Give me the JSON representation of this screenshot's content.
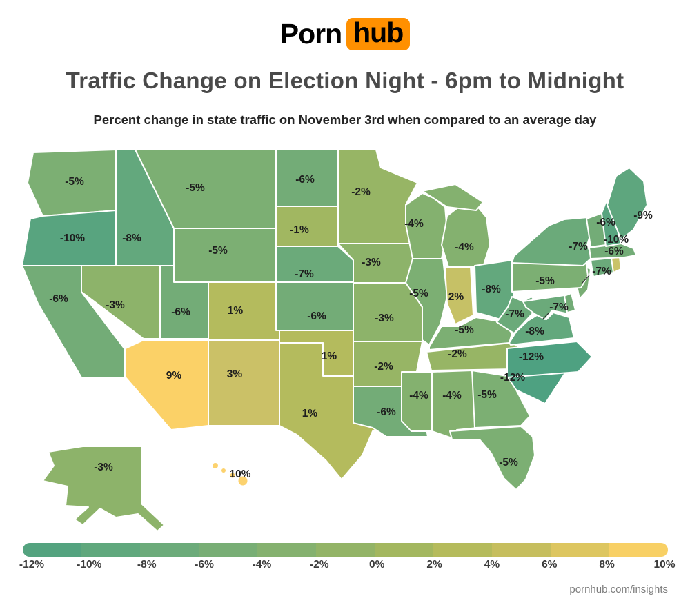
{
  "header": {
    "logo": {
      "left": "Porn",
      "right": "hub",
      "accent_color": "#ff9000"
    },
    "title": "Traffic Change on Election Night - 6pm to Midnight",
    "subtitle": "Percent change in state traffic on November 3rd when compared to an average day"
  },
  "legend": {
    "ticks": [
      "-12%",
      "-10%",
      "-8%",
      "-6%",
      "-4%",
      "-2%",
      "0%",
      "2%",
      "4%",
      "6%",
      "8%",
      "10%"
    ],
    "segment_colors": [
      "#54a37f",
      "#60a87d",
      "#6cab7a",
      "#78ae75",
      "#85b16f",
      "#93b467",
      "#a3b75f",
      "#b5bb5c",
      "#c6be5e",
      "#ddc660",
      "#f8d065"
    ]
  },
  "footer": {
    "credit": "pornhub.com/insights"
  },
  "chart_data": {
    "type": "heatmap",
    "subtype": "us-state-choropleth",
    "title": "Traffic Change on Election Night - 6pm to Midnight",
    "subtitle": "Percent change in state traffic on November 3rd when compared to an average day",
    "unit": "percent change vs average day",
    "legend_range": [
      -12,
      10
    ],
    "legend_step": 2,
    "legend_position": "bottom",
    "states": [
      {
        "abbr": "WA",
        "name": "Washington",
        "value": -5,
        "label": "-5%",
        "fill": "#7caf73"
      },
      {
        "abbr": "OR",
        "name": "Oregon",
        "value": -10,
        "label": "-10%",
        "fill": "#58a47f"
      },
      {
        "abbr": "CA",
        "name": "California",
        "value": -6,
        "label": "-6%",
        "fill": "#73ac77"
      },
      {
        "abbr": "NV",
        "name": "Nevada",
        "value": -3,
        "label": "-3%",
        "fill": "#8db36a"
      },
      {
        "abbr": "ID",
        "name": "Idaho",
        "value": -8,
        "label": "-8%",
        "fill": "#63a87d"
      },
      {
        "abbr": "UT",
        "name": "Utah",
        "value": -6,
        "label": "-6%",
        "fill": "#73ac77"
      },
      {
        "abbr": "AZ",
        "name": "Arizona",
        "value": 9,
        "label": "9%",
        "fill": "#fbd167"
      },
      {
        "abbr": "MT",
        "name": "Montana",
        "value": -5,
        "label": "-5%",
        "fill": "#7caf73"
      },
      {
        "abbr": "WY",
        "name": "Wyoming",
        "value": -5,
        "label": "-5%",
        "fill": "#7caf73"
      },
      {
        "abbr": "CO",
        "name": "Colorado",
        "value": 1,
        "label": "1%",
        "fill": "#b4bb5d"
      },
      {
        "abbr": "NM",
        "name": "New Mexico",
        "value": 3,
        "label": "3%",
        "fill": "#cbc167"
      },
      {
        "abbr": "ND",
        "name": "North Dakota",
        "value": -6,
        "label": "-6%",
        "fill": "#73ac77"
      },
      {
        "abbr": "SD",
        "name": "South Dakota",
        "value": -1,
        "label": "-1%",
        "fill": "#a1b761"
      },
      {
        "abbr": "NE",
        "name": "Nebraska",
        "value": -7,
        "label": "-7%",
        "fill": "#6baa7a"
      },
      {
        "abbr": "KS",
        "name": "Kansas",
        "value": -6,
        "label": "-6%",
        "fill": "#73ac77"
      },
      {
        "abbr": "OK",
        "name": "Oklahoma",
        "value": 1,
        "label": "1%",
        "fill": "#b4bb5d"
      },
      {
        "abbr": "TX",
        "name": "Texas",
        "value": 1,
        "label": "1%",
        "fill": "#b4bb5d"
      },
      {
        "abbr": "MN",
        "name": "Minnesota",
        "value": -2,
        "label": "-2%",
        "fill": "#97b565"
      },
      {
        "abbr": "IA",
        "name": "Iowa",
        "value": -3,
        "label": "-3%",
        "fill": "#8db36a"
      },
      {
        "abbr": "MO",
        "name": "Missouri",
        "value": -3,
        "label": "-3%",
        "fill": "#8db36a"
      },
      {
        "abbr": "AR",
        "name": "Arkansas",
        "value": -2,
        "label": "-2%",
        "fill": "#97b565"
      },
      {
        "abbr": "LA",
        "name": "Louisiana",
        "value": -6,
        "label": "-6%",
        "fill": "#73ac77"
      },
      {
        "abbr": "WI",
        "name": "Wisconsin",
        "value": -4,
        "label": "-4%",
        "fill": "#84b16f"
      },
      {
        "abbr": "IL",
        "name": "Illinois",
        "value": -5,
        "label": "-5%",
        "fill": "#7caf73"
      },
      {
        "abbr": "MI",
        "name": "Michigan",
        "value": -4,
        "label": "-4%",
        "fill": "#84b16f"
      },
      {
        "abbr": "IN",
        "name": "Indiana",
        "value": 2,
        "label": "2%",
        "fill": "#c6c166"
      },
      {
        "abbr": "OH",
        "name": "Ohio",
        "value": -8,
        "label": "-8%",
        "fill": "#63a87d"
      },
      {
        "abbr": "KY",
        "name": "Kentucky",
        "value": -5,
        "label": "-5%",
        "fill": "#7caf73"
      },
      {
        "abbr": "TN",
        "name": "Tennessee",
        "value": -2,
        "label": "-2%",
        "fill": "#97b565"
      },
      {
        "abbr": "MS",
        "name": "Mississippi",
        "value": -4,
        "label": "-4%",
        "fill": "#84b16f"
      },
      {
        "abbr": "AL",
        "name": "Alabama",
        "value": -4,
        "label": "-4%",
        "fill": "#84b16f"
      },
      {
        "abbr": "GA",
        "name": "Georgia",
        "value": -5,
        "label": "-5%",
        "fill": "#7caf73"
      },
      {
        "abbr": "FL",
        "name": "Florida",
        "value": -5,
        "label": "-5%",
        "fill": "#7caf73"
      },
      {
        "abbr": "SC",
        "name": "South Carolina",
        "value": -12,
        "label": "-12%",
        "fill": "#4ea181"
      },
      {
        "abbr": "NC",
        "name": "North Carolina",
        "value": -12,
        "label": "-12%",
        "fill": "#4ea181"
      },
      {
        "abbr": "VA",
        "name": "Virginia",
        "value": -8,
        "label": "-8%",
        "fill": "#63a87d"
      },
      {
        "abbr": "WV",
        "name": "West Virginia",
        "value": -7,
        "label": "-7%",
        "fill": "#6baa7a"
      },
      {
        "abbr": "MD",
        "name": "Maryland",
        "value": -7,
        "label": "-7%",
        "fill": "#6baa7a"
      },
      {
        "abbr": "DE",
        "name": "Delaware",
        "value": null,
        "label": "",
        "fill": "#73ac77"
      },
      {
        "abbr": "NJ",
        "name": "New Jersey",
        "value": null,
        "label": "",
        "fill": "#79ad74"
      },
      {
        "abbr": "PA",
        "name": "Pennsylvania",
        "value": -5,
        "label": "-5%",
        "fill": "#7caf73"
      },
      {
        "abbr": "NY",
        "name": "New York",
        "value": -7,
        "label": "-7%",
        "fill": "#6baa7a"
      },
      {
        "abbr": "CT",
        "name": "Connecticut",
        "value": -7,
        "label": "-7%",
        "fill": "#6baa7a"
      },
      {
        "abbr": "RI",
        "name": "Rhode Island",
        "value": null,
        "label": "",
        "fill": "#c9c369"
      },
      {
        "abbr": "MA",
        "name": "Massachusetts",
        "value": -6,
        "label": "-6%",
        "fill": "#73ac77"
      },
      {
        "abbr": "VT",
        "name": "Vermont",
        "value": -6,
        "label": "-6%",
        "fill": "#73ac77"
      },
      {
        "abbr": "NH",
        "name": "New Hampshire",
        "value": -10,
        "label": "-10%",
        "fill": "#58a47f"
      },
      {
        "abbr": "ME",
        "name": "Maine",
        "value": -9,
        "label": "-9%",
        "fill": "#5ea67e"
      },
      {
        "abbr": "AK",
        "name": "Alaska",
        "value": -3,
        "label": "-3%",
        "fill": "#8db36a"
      },
      {
        "abbr": "HI",
        "name": "Hawaii",
        "value": 10,
        "label": "10%",
        "fill": "#fcd26e"
      }
    ]
  }
}
